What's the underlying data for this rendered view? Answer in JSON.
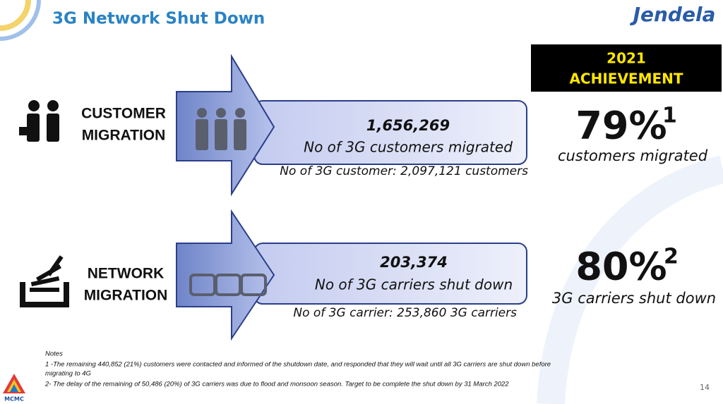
{
  "header": {
    "title": "3G Network Shut Down",
    "logo": "Jendela"
  },
  "achievement_header": [
    "2021",
    "ACHIEVEMENT"
  ],
  "rows": [
    {
      "label_lines": [
        "CUSTOMER",
        "MIGRATION"
      ],
      "value": "1,656,269",
      "description": "No of 3G customers migrated",
      "total": "No of 3G customer: 2,097,121 customers",
      "percent": "79%",
      "footnote_mark": "1",
      "percent_caption": "customers migrated"
    },
    {
      "label_lines": [
        "NETWORK",
        "MIGRATION"
      ],
      "value": "203,374",
      "description": "No of 3G carriers shut down",
      "total": "No of 3G carrier: 253,860 3G carriers",
      "percent": "80%",
      "footnote_mark": "2",
      "percent_caption": "3G carriers shut down"
    }
  ],
  "notes": {
    "heading": "Notes",
    "items": [
      "1 -The remaining 440,852 (21%) customers were contacted and informed of the shutdown date, and responded that they will wait until all 3G carriers are shut down before",
      "migrating to 4G",
      "2- The delay of the remaining of 50,486 (20%) of 3G carriers was due to flood and monsoon season. Target to be complete the shut down by 31 March 2022"
    ]
  },
  "page_number": "14",
  "footer_logo": "MCMC"
}
